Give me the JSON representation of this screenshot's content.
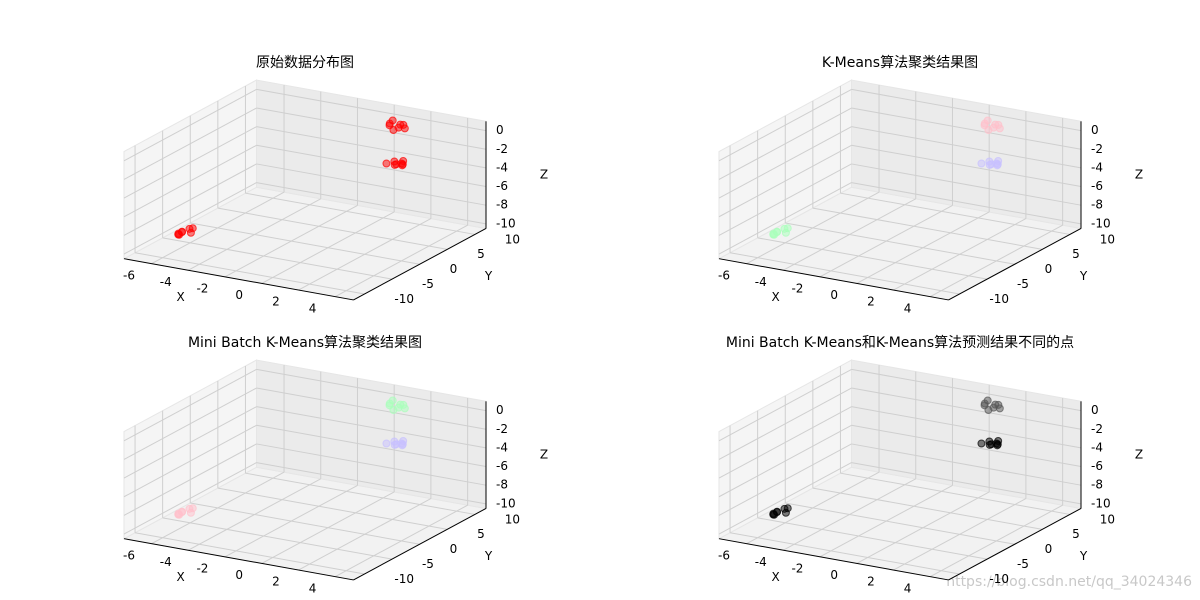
{
  "watermark": "https://blog.csdn.net/qq_34024346",
  "chart_data": [
    {
      "type": "scatter3d",
      "title": "原始数据分布图",
      "xlabel": "X",
      "ylabel": "Y",
      "zlabel": "Z",
      "xlim": [
        -7.5,
        5
      ],
      "ylim": [
        -12,
        12
      ],
      "zlim": [
        -10.5,
        1
      ],
      "xticks": [
        -6,
        -4,
        -2,
        0,
        2,
        4
      ],
      "yticks": [
        -10,
        -5,
        0,
        5,
        10
      ],
      "zticks": [
        0,
        -2,
        -4,
        -6,
        -8,
        -10
      ],
      "grid": true,
      "series": [
        {
          "color": "#ff0000",
          "x": [
            -6.2,
            -5.8,
            -6.0,
            -6.4,
            -5.6,
            -6.1,
            -5.9,
            -6.3
          ],
          "y": [
            -6.5,
            -5.2,
            -7.0,
            -5.8,
            -6.2,
            -4.8,
            -6.8,
            -5.5
          ],
          "z": [
            -9.2,
            -8.8,
            -9.0,
            -9.4,
            -8.9,
            -9.1,
            -8.7,
            -9.3
          ]
        },
        {
          "color": "#ff0000",
          "x": [
            0.8,
            1.3,
            0.6,
            1.1,
            1.4,
            0.9,
            1.2,
            0.7
          ],
          "y": [
            8.5,
            9.6,
            9.2,
            8.2,
            9.0,
            10.1,
            8.8,
            9.4
          ],
          "z": [
            0.2,
            -0.3,
            0.1,
            -0.1,
            0.3,
            -0.2,
            0.0,
            0.4
          ]
        },
        {
          "color": "#ff0000",
          "x": [
            0.9,
            1.2,
            0.7,
            1.4,
            1.0,
            0.6,
            1.3,
            1.1
          ],
          "y": [
            9.1,
            8.4,
            9.7,
            8.9,
            10.0,
            8.6,
            9.3,
            9.8
          ],
          "z": [
            -4.2,
            -3.8,
            -4.1,
            -3.9,
            -4.3,
            -4.0,
            -3.7,
            -4.4
          ]
        }
      ]
    },
    {
      "type": "scatter3d",
      "title": "K-Means算法聚类结果图",
      "xlabel": "X",
      "ylabel": "Y",
      "zlabel": "Z",
      "xlim": [
        -7.5,
        5
      ],
      "ylim": [
        -12,
        12
      ],
      "zlim": [
        -10.5,
        1
      ],
      "xticks": [
        -6,
        -4,
        -2,
        0,
        2,
        4
      ],
      "yticks": [
        -10,
        -5,
        0,
        5,
        10
      ],
      "zticks": [
        0,
        -2,
        -4,
        -6,
        -8,
        -10
      ],
      "grid": true,
      "series": [
        {
          "color": "#aaffbb",
          "x": [
            -6.2,
            -5.8,
            -6.0,
            -6.4,
            -5.6,
            -6.1,
            -5.9,
            -6.3
          ],
          "y": [
            -6.5,
            -5.2,
            -7.0,
            -5.8,
            -6.2,
            -4.8,
            -6.8,
            -5.5
          ],
          "z": [
            -9.2,
            -8.8,
            -9.0,
            -9.4,
            -8.9,
            -9.1,
            -8.7,
            -9.3
          ]
        },
        {
          "color": "#ffc0cb",
          "x": [
            0.8,
            1.3,
            0.6,
            1.1,
            1.4,
            0.9,
            1.2,
            0.7
          ],
          "y": [
            8.5,
            9.6,
            9.2,
            8.2,
            9.0,
            10.1,
            8.8,
            9.4
          ],
          "z": [
            0.2,
            -0.3,
            0.1,
            -0.1,
            0.3,
            -0.2,
            0.0,
            0.4
          ]
        },
        {
          "color": "#c8c0ff",
          "x": [
            0.9,
            1.2,
            0.7,
            1.4,
            1.0,
            0.6,
            1.3,
            1.1
          ],
          "y": [
            9.1,
            8.4,
            9.7,
            8.9,
            10.0,
            8.6,
            9.3,
            9.8
          ],
          "z": [
            -4.2,
            -3.8,
            -4.1,
            -3.9,
            -4.3,
            -4.0,
            -3.7,
            -4.4
          ]
        }
      ]
    },
    {
      "type": "scatter3d",
      "title": "Mini Batch K-Means算法聚类结果图",
      "xlabel": "X",
      "ylabel": "Y",
      "zlabel": "Z",
      "xlim": [
        -7.5,
        5
      ],
      "ylim": [
        -12,
        12
      ],
      "zlim": [
        -10.5,
        1
      ],
      "xticks": [
        -6,
        -4,
        -2,
        0,
        2,
        4
      ],
      "yticks": [
        -10,
        -5,
        0,
        5,
        10
      ],
      "zticks": [
        0,
        -2,
        -4,
        -6,
        -8,
        -10
      ],
      "grid": true,
      "series": [
        {
          "color": "#ffc0cb",
          "x": [
            -6.2,
            -5.8,
            -6.0,
            -6.4,
            -5.6,
            -6.1,
            -5.9,
            -6.3
          ],
          "y": [
            -6.5,
            -5.2,
            -7.0,
            -5.8,
            -6.2,
            -4.8,
            -6.8,
            -5.5
          ],
          "z": [
            -9.2,
            -8.8,
            -9.0,
            -9.4,
            -8.9,
            -9.1,
            -8.7,
            -9.3
          ]
        },
        {
          "color": "#aaffbb",
          "x": [
            0.8,
            1.3,
            0.6,
            1.1,
            1.4,
            0.9,
            1.2,
            0.7
          ],
          "y": [
            8.5,
            9.6,
            9.2,
            8.2,
            9.0,
            10.1,
            8.8,
            9.4
          ],
          "z": [
            0.2,
            -0.3,
            0.1,
            -0.1,
            0.3,
            -0.2,
            0.0,
            0.4
          ]
        },
        {
          "color": "#c8c0ff",
          "x": [
            0.9,
            1.2,
            0.7,
            1.4,
            1.0,
            0.6,
            1.3,
            1.1
          ],
          "y": [
            9.1,
            8.4,
            9.7,
            8.9,
            10.0,
            8.6,
            9.3,
            9.8
          ],
          "z": [
            -4.2,
            -3.8,
            -4.1,
            -3.9,
            -4.3,
            -4.0,
            -3.7,
            -4.4
          ]
        }
      ]
    },
    {
      "type": "scatter3d",
      "title": "Mini Batch K-Means和K-Means算法预测结果不同的点",
      "xlabel": "X",
      "ylabel": "Y",
      "zlabel": "Z",
      "xlim": [
        -7.5,
        5
      ],
      "ylim": [
        -12,
        12
      ],
      "zlim": [
        -10.5,
        1
      ],
      "xticks": [
        -6,
        -4,
        -2,
        0,
        2,
        4
      ],
      "yticks": [
        -10,
        -5,
        0,
        5,
        10
      ],
      "zticks": [
        0,
        -2,
        -4,
        -6,
        -8,
        -10
      ],
      "grid": true,
      "series": [
        {
          "color": "#000000",
          "x": [
            -6.2,
            -5.8,
            -6.0,
            -6.4,
            -5.6,
            -6.1,
            -5.9,
            -6.3
          ],
          "y": [
            -6.5,
            -5.2,
            -7.0,
            -5.8,
            -6.2,
            -4.8,
            -6.8,
            -5.5
          ],
          "z": [
            -9.2,
            -8.8,
            -9.0,
            -9.4,
            -8.9,
            -9.1,
            -8.7,
            -9.3
          ]
        },
        {
          "color": "#555555",
          "x": [
            0.8,
            1.3,
            0.6,
            1.1,
            1.4,
            0.9,
            1.2,
            0.7
          ],
          "y": [
            8.5,
            9.6,
            9.2,
            8.2,
            9.0,
            10.1,
            8.8,
            9.4
          ],
          "z": [
            0.2,
            -0.3,
            0.1,
            -0.1,
            0.3,
            -0.2,
            0.0,
            0.4
          ]
        },
        {
          "color": "#000000",
          "x": [
            0.9,
            1.2,
            0.7,
            1.4,
            1.0,
            0.6,
            1.3,
            1.1
          ],
          "y": [
            9.1,
            8.4,
            9.7,
            8.9,
            10.0,
            8.6,
            9.3,
            9.8
          ],
          "z": [
            -4.2,
            -3.8,
            -4.1,
            -3.9,
            -4.3,
            -4.0,
            -3.7,
            -4.4
          ]
        }
      ]
    }
  ]
}
